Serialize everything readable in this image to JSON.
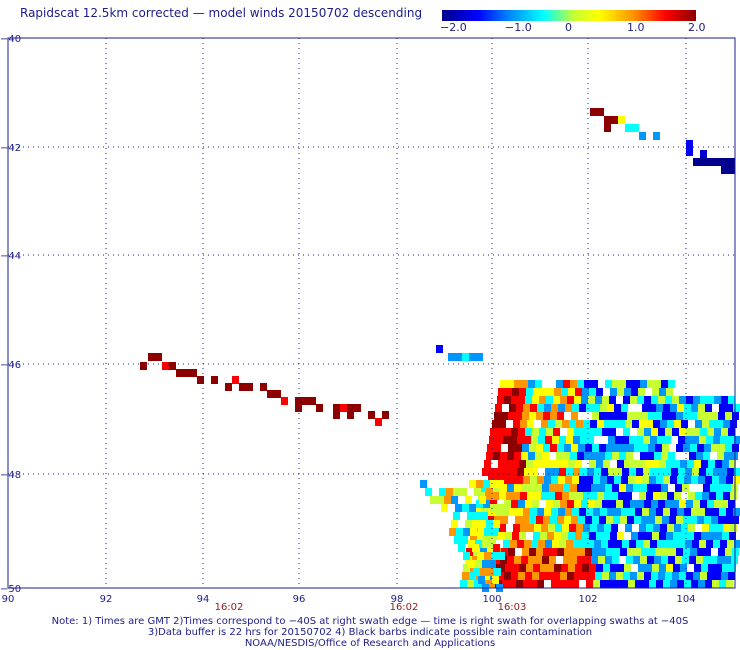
{
  "title": "Rapidscat 12.5km corrected — model winds 20150702 descending",
  "colorbar": {
    "ticks": [
      "−2.0",
      "−1.0",
      "0",
      "1.0",
      "2.0"
    ],
    "range": [
      -2.0,
      2.0
    ]
  },
  "lat_labels": [
    "−40",
    "−42",
    "−44",
    "−46",
    "−48",
    "−50"
  ],
  "lon_labels": [
    "90",
    "92",
    "94",
    "96",
    "98",
    "100",
    "102",
    "104"
  ],
  "time_labels": [
    "16:02",
    "16:02",
    "16:03"
  ],
  "notes": [
    "Note: 1) Times are GMT 2)Times correspond to −40S at right swath edge — time is right swath for overlapping swaths at −40S",
    "3)Data buffer is 22 hrs for 20150702 4) Black barbs indicate possible rain contamination",
    "NOAA/NESDIS/Office of Research and Applications"
  ],
  "colors": {
    "grid": "#1c1c8c",
    "time_label": "#8c1c1c",
    "text": "#1c1c8c"
  }
}
